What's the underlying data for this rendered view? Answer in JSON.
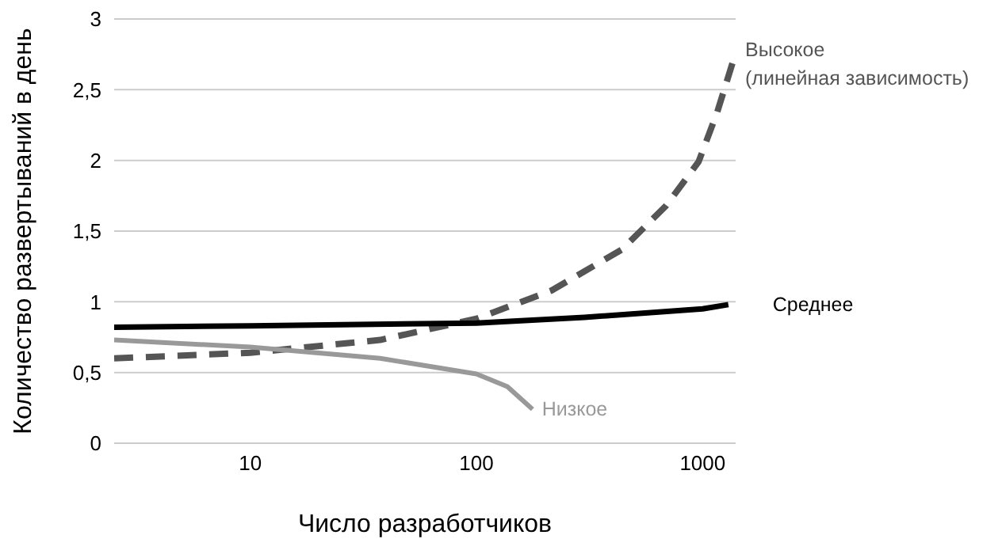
{
  "chart_data": {
    "type": "line",
    "xlabel": "Число разработчиков",
    "ylabel": "Количество развертываний в день",
    "log": "x",
    "grid": "y",
    "xlim": [
      2.5,
      1400
    ],
    "xticks": [
      10,
      100,
      1000
    ],
    "ylim": [
      0,
      3
    ],
    "yticks": [
      0,
      {
        "value": 0.5,
        "label": "0,5"
      },
      1,
      {
        "value": 1.5,
        "label": "1,5"
      },
      2,
      {
        "value": 2.5,
        "label": "2,5"
      },
      3
    ],
    "series": [
      {
        "name": "Высокое (линейная зависимость)",
        "color": "#555555",
        "line_style": "dashed",
        "x": [
          2.5,
          10,
          37.5,
          100,
          215,
          440,
          690,
          960,
          1160,
          1400
        ],
        "values": [
          0.6,
          0.64,
          0.73,
          0.88,
          1.08,
          1.37,
          1.68,
          1.99,
          2.34,
          2.76
        ]
      },
      {
        "name": "Среднее",
        "color": "#000000",
        "line_style": "solid",
        "x": [
          2.5,
          10,
          100,
          300,
          1000,
          1300
        ],
        "values": [
          0.82,
          0.83,
          0.85,
          0.89,
          0.95,
          0.98
        ]
      },
      {
        "name": "Низкое",
        "color": "#999999",
        "line_style": "solid",
        "x": [
          2.5,
          10,
          37.5,
          100,
          137,
          177
        ],
        "values": [
          0.73,
          0.68,
          0.6,
          0.49,
          0.4,
          0.24
        ]
      }
    ]
  }
}
